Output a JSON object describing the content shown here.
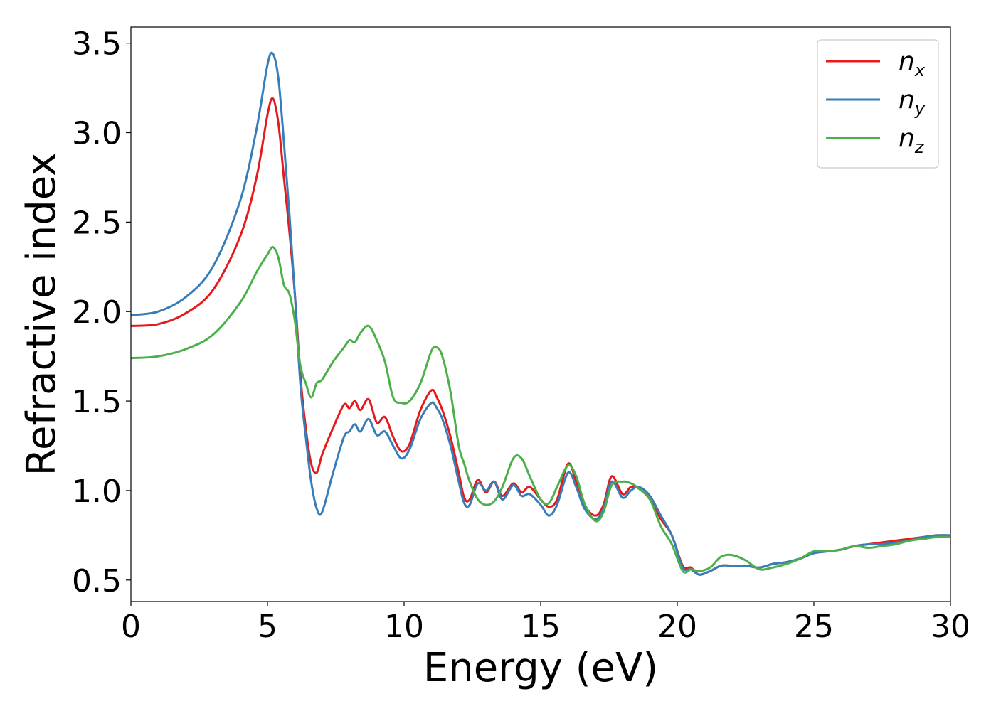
{
  "chart_data": {
    "type": "line",
    "title": "",
    "xlabel": "Energy (eV)",
    "ylabel": "Refractive index",
    "xlim": [
      0,
      30
    ],
    "ylim": [
      0.38,
      3.59
    ],
    "xticks": [
      0,
      5,
      10,
      15,
      20,
      25,
      30
    ],
    "yticks": [
      0.5,
      1.0,
      1.5,
      2.0,
      2.5,
      3.0,
      3.5
    ],
    "xtick_labels": [
      "0",
      "5",
      "10",
      "15",
      "20",
      "25",
      "30"
    ],
    "ytick_labels": [
      "0.5",
      "1.0",
      "1.5",
      "2.0",
      "2.5",
      "3.0",
      "3.5"
    ],
    "grid": false,
    "legend_position": "top-right",
    "series": [
      {
        "name": "n_x",
        "label_main": "n",
        "label_sub": "x",
        "color": "#e41a1c",
        "points": [
          [
            0,
            1.92
          ],
          [
            1,
            1.93
          ],
          [
            2,
            1.99
          ],
          [
            3,
            2.12
          ],
          [
            4,
            2.42
          ],
          [
            4.6,
            2.75
          ],
          [
            5.0,
            3.1
          ],
          [
            5.2,
            3.19
          ],
          [
            5.4,
            3.05
          ],
          [
            5.6,
            2.75
          ],
          [
            5.8,
            2.45
          ],
          [
            6.0,
            2.1
          ],
          [
            6.2,
            1.65
          ],
          [
            6.4,
            1.35
          ],
          [
            6.6,
            1.15
          ],
          [
            6.8,
            1.1
          ],
          [
            7.0,
            1.2
          ],
          [
            7.4,
            1.35
          ],
          [
            7.8,
            1.48
          ],
          [
            8.0,
            1.46
          ],
          [
            8.2,
            1.5
          ],
          [
            8.4,
            1.45
          ],
          [
            8.7,
            1.51
          ],
          [
            9.0,
            1.38
          ],
          [
            9.3,
            1.41
          ],
          [
            9.6,
            1.3
          ],
          [
            9.9,
            1.22
          ],
          [
            10.2,
            1.26
          ],
          [
            10.6,
            1.45
          ],
          [
            11.0,
            1.56
          ],
          [
            11.2,
            1.52
          ],
          [
            11.4,
            1.45
          ],
          [
            11.7,
            1.3
          ],
          [
            12.0,
            1.1
          ],
          [
            12.2,
            0.96
          ],
          [
            12.4,
            0.95
          ],
          [
            12.7,
            1.06
          ],
          [
            13.0,
            0.99
          ],
          [
            13.3,
            1.05
          ],
          [
            13.6,
            0.97
          ],
          [
            14.0,
            1.04
          ],
          [
            14.3,
            0.99
          ],
          [
            14.6,
            1.02
          ],
          [
            15.0,
            0.95
          ],
          [
            15.3,
            0.91
          ],
          [
            15.6,
            0.95
          ],
          [
            16.0,
            1.15
          ],
          [
            16.3,
            1.05
          ],
          [
            16.6,
            0.92
          ],
          [
            17.0,
            0.86
          ],
          [
            17.3,
            0.92
          ],
          [
            17.6,
            1.08
          ],
          [
            18.0,
            0.98
          ],
          [
            18.3,
            1.02
          ],
          [
            18.6,
            1.01
          ],
          [
            19.0,
            0.95
          ],
          [
            19.4,
            0.84
          ],
          [
            19.8,
            0.75
          ],
          [
            20.2,
            0.58
          ],
          [
            20.5,
            0.57
          ],
          [
            20.8,
            0.53
          ],
          [
            21.2,
            0.55
          ],
          [
            21.6,
            0.58
          ],
          [
            22.0,
            0.58
          ],
          [
            22.5,
            0.58
          ],
          [
            23.0,
            0.57
          ],
          [
            23.5,
            0.59
          ],
          [
            24.0,
            0.6
          ],
          [
            24.5,
            0.62
          ],
          [
            25.0,
            0.65
          ],
          [
            25.5,
            0.66
          ],
          [
            26.0,
            0.67
          ],
          [
            26.5,
            0.69
          ],
          [
            27.0,
            0.7
          ],
          [
            27.5,
            0.71
          ],
          [
            28.0,
            0.72
          ],
          [
            28.5,
            0.73
          ],
          [
            29.0,
            0.74
          ],
          [
            29.5,
            0.75
          ],
          [
            30.0,
            0.75
          ]
        ]
      },
      {
        "name": "n_y",
        "label_main": "n",
        "label_sub": "y",
        "color": "#377eb8",
        "points": [
          [
            0,
            1.98
          ],
          [
            1,
            2.0
          ],
          [
            2,
            2.08
          ],
          [
            3,
            2.25
          ],
          [
            4,
            2.62
          ],
          [
            4.6,
            3.02
          ],
          [
            5.0,
            3.38
          ],
          [
            5.2,
            3.44
          ],
          [
            5.4,
            3.3
          ],
          [
            5.6,
            2.95
          ],
          [
            5.8,
            2.55
          ],
          [
            6.0,
            2.1
          ],
          [
            6.2,
            1.6
          ],
          [
            6.4,
            1.3
          ],
          [
            6.6,
            1.05
          ],
          [
            6.8,
            0.9
          ],
          [
            7.0,
            0.88
          ],
          [
            7.4,
            1.1
          ],
          [
            7.8,
            1.3
          ],
          [
            8.0,
            1.33
          ],
          [
            8.2,
            1.37
          ],
          [
            8.4,
            1.33
          ],
          [
            8.7,
            1.4
          ],
          [
            9.0,
            1.31
          ],
          [
            9.3,
            1.33
          ],
          [
            9.6,
            1.25
          ],
          [
            9.9,
            1.18
          ],
          [
            10.2,
            1.23
          ],
          [
            10.6,
            1.4
          ],
          [
            11.0,
            1.49
          ],
          [
            11.2,
            1.46
          ],
          [
            11.4,
            1.4
          ],
          [
            11.7,
            1.25
          ],
          [
            12.0,
            1.05
          ],
          [
            12.2,
            0.93
          ],
          [
            12.4,
            0.92
          ],
          [
            12.7,
            1.04
          ],
          [
            13.0,
            1.0
          ],
          [
            13.3,
            1.05
          ],
          [
            13.6,
            0.95
          ],
          [
            14.0,
            1.03
          ],
          [
            14.3,
            0.97
          ],
          [
            14.6,
            0.98
          ],
          [
            15.0,
            0.92
          ],
          [
            15.3,
            0.86
          ],
          [
            15.6,
            0.92
          ],
          [
            16.0,
            1.1
          ],
          [
            16.3,
            1.02
          ],
          [
            16.6,
            0.9
          ],
          [
            17.0,
            0.84
          ],
          [
            17.3,
            0.9
          ],
          [
            17.6,
            1.05
          ],
          [
            18.0,
            0.96
          ],
          [
            18.3,
            1.0
          ],
          [
            18.6,
            1.02
          ],
          [
            19.0,
            0.97
          ],
          [
            19.4,
            0.86
          ],
          [
            19.8,
            0.75
          ],
          [
            20.2,
            0.57
          ],
          [
            20.5,
            0.56
          ],
          [
            20.8,
            0.53
          ],
          [
            21.2,
            0.55
          ],
          [
            21.6,
            0.58
          ],
          [
            22.0,
            0.58
          ],
          [
            22.5,
            0.58
          ],
          [
            23.0,
            0.57
          ],
          [
            23.5,
            0.59
          ],
          [
            24.0,
            0.6
          ],
          [
            24.5,
            0.62
          ],
          [
            25.0,
            0.65
          ],
          [
            25.5,
            0.66
          ],
          [
            26.0,
            0.67
          ],
          [
            26.5,
            0.69
          ],
          [
            27.0,
            0.7
          ],
          [
            27.5,
            0.7
          ],
          [
            28.0,
            0.71
          ],
          [
            28.5,
            0.72
          ],
          [
            29.0,
            0.74
          ],
          [
            29.5,
            0.75
          ],
          [
            30.0,
            0.75
          ]
        ]
      },
      {
        "name": "n_z",
        "label_main": "n",
        "label_sub": "z",
        "color": "#4daf4a",
        "points": [
          [
            0,
            1.74
          ],
          [
            1,
            1.75
          ],
          [
            2,
            1.79
          ],
          [
            3,
            1.87
          ],
          [
            4,
            2.05
          ],
          [
            4.6,
            2.22
          ],
          [
            5.0,
            2.32
          ],
          [
            5.2,
            2.36
          ],
          [
            5.4,
            2.3
          ],
          [
            5.6,
            2.15
          ],
          [
            5.8,
            2.1
          ],
          [
            6.0,
            1.95
          ],
          [
            6.2,
            1.7
          ],
          [
            6.4,
            1.6
          ],
          [
            6.6,
            1.52
          ],
          [
            6.8,
            1.6
          ],
          [
            7.0,
            1.62
          ],
          [
            7.4,
            1.72
          ],
          [
            7.8,
            1.8
          ],
          [
            8.0,
            1.84
          ],
          [
            8.2,
            1.83
          ],
          [
            8.4,
            1.88
          ],
          [
            8.7,
            1.92
          ],
          [
            9.0,
            1.84
          ],
          [
            9.3,
            1.72
          ],
          [
            9.6,
            1.52
          ],
          [
            9.9,
            1.49
          ],
          [
            10.2,
            1.5
          ],
          [
            10.6,
            1.6
          ],
          [
            11.0,
            1.78
          ],
          [
            11.2,
            1.8
          ],
          [
            11.4,
            1.75
          ],
          [
            11.7,
            1.55
          ],
          [
            12.0,
            1.25
          ],
          [
            12.2,
            1.15
          ],
          [
            12.4,
            1.05
          ],
          [
            12.7,
            0.95
          ],
          [
            13.0,
            0.92
          ],
          [
            13.3,
            0.94
          ],
          [
            13.6,
            1.02
          ],
          [
            14.0,
            1.18
          ],
          [
            14.3,
            1.18
          ],
          [
            14.6,
            1.08
          ],
          [
            15.0,
            0.95
          ],
          [
            15.3,
            0.93
          ],
          [
            15.6,
            1.02
          ],
          [
            16.0,
            1.14
          ],
          [
            16.3,
            1.08
          ],
          [
            16.6,
            0.93
          ],
          [
            17.0,
            0.83
          ],
          [
            17.3,
            0.88
          ],
          [
            17.6,
            1.03
          ],
          [
            18.0,
            1.05
          ],
          [
            18.3,
            1.04
          ],
          [
            18.6,
            1.01
          ],
          [
            19.0,
            0.95
          ],
          [
            19.4,
            0.8
          ],
          [
            19.8,
            0.7
          ],
          [
            20.2,
            0.55
          ],
          [
            20.5,
            0.56
          ],
          [
            20.8,
            0.55
          ],
          [
            21.2,
            0.57
          ],
          [
            21.6,
            0.63
          ],
          [
            22.0,
            0.64
          ],
          [
            22.5,
            0.61
          ],
          [
            23.0,
            0.56
          ],
          [
            23.5,
            0.57
          ],
          [
            24.0,
            0.59
          ],
          [
            24.5,
            0.62
          ],
          [
            25.0,
            0.66
          ],
          [
            25.5,
            0.66
          ],
          [
            26.0,
            0.67
          ],
          [
            26.5,
            0.69
          ],
          [
            27.0,
            0.68
          ],
          [
            27.5,
            0.69
          ],
          [
            28.0,
            0.7
          ],
          [
            28.5,
            0.72
          ],
          [
            29.0,
            0.73
          ],
          [
            29.5,
            0.74
          ],
          [
            30.0,
            0.74
          ]
        ]
      }
    ]
  }
}
